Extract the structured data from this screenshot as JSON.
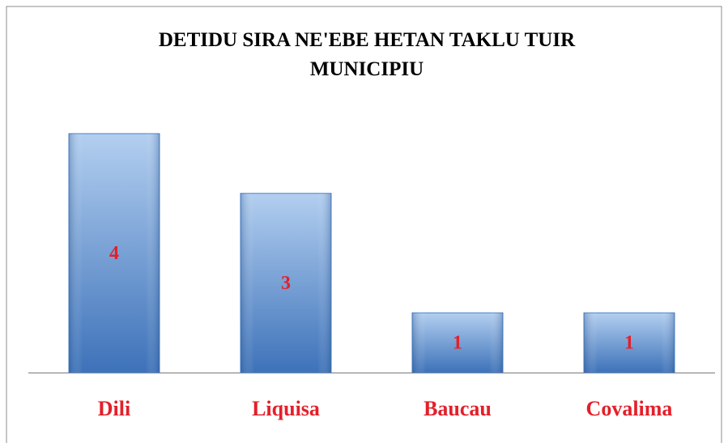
{
  "chart_data": {
    "type": "bar",
    "title": "DETIDU SIRA NE'EBE HETAN TAKLU TUIR MUNICIPIU",
    "categories": [
      "Dili",
      "Liquisa",
      "Baucau",
      "Covalima"
    ],
    "values": [
      4,
      3,
      1,
      1
    ],
    "color": "#4a80c4",
    "label_color": "#e3202a",
    "grid": false
  }
}
